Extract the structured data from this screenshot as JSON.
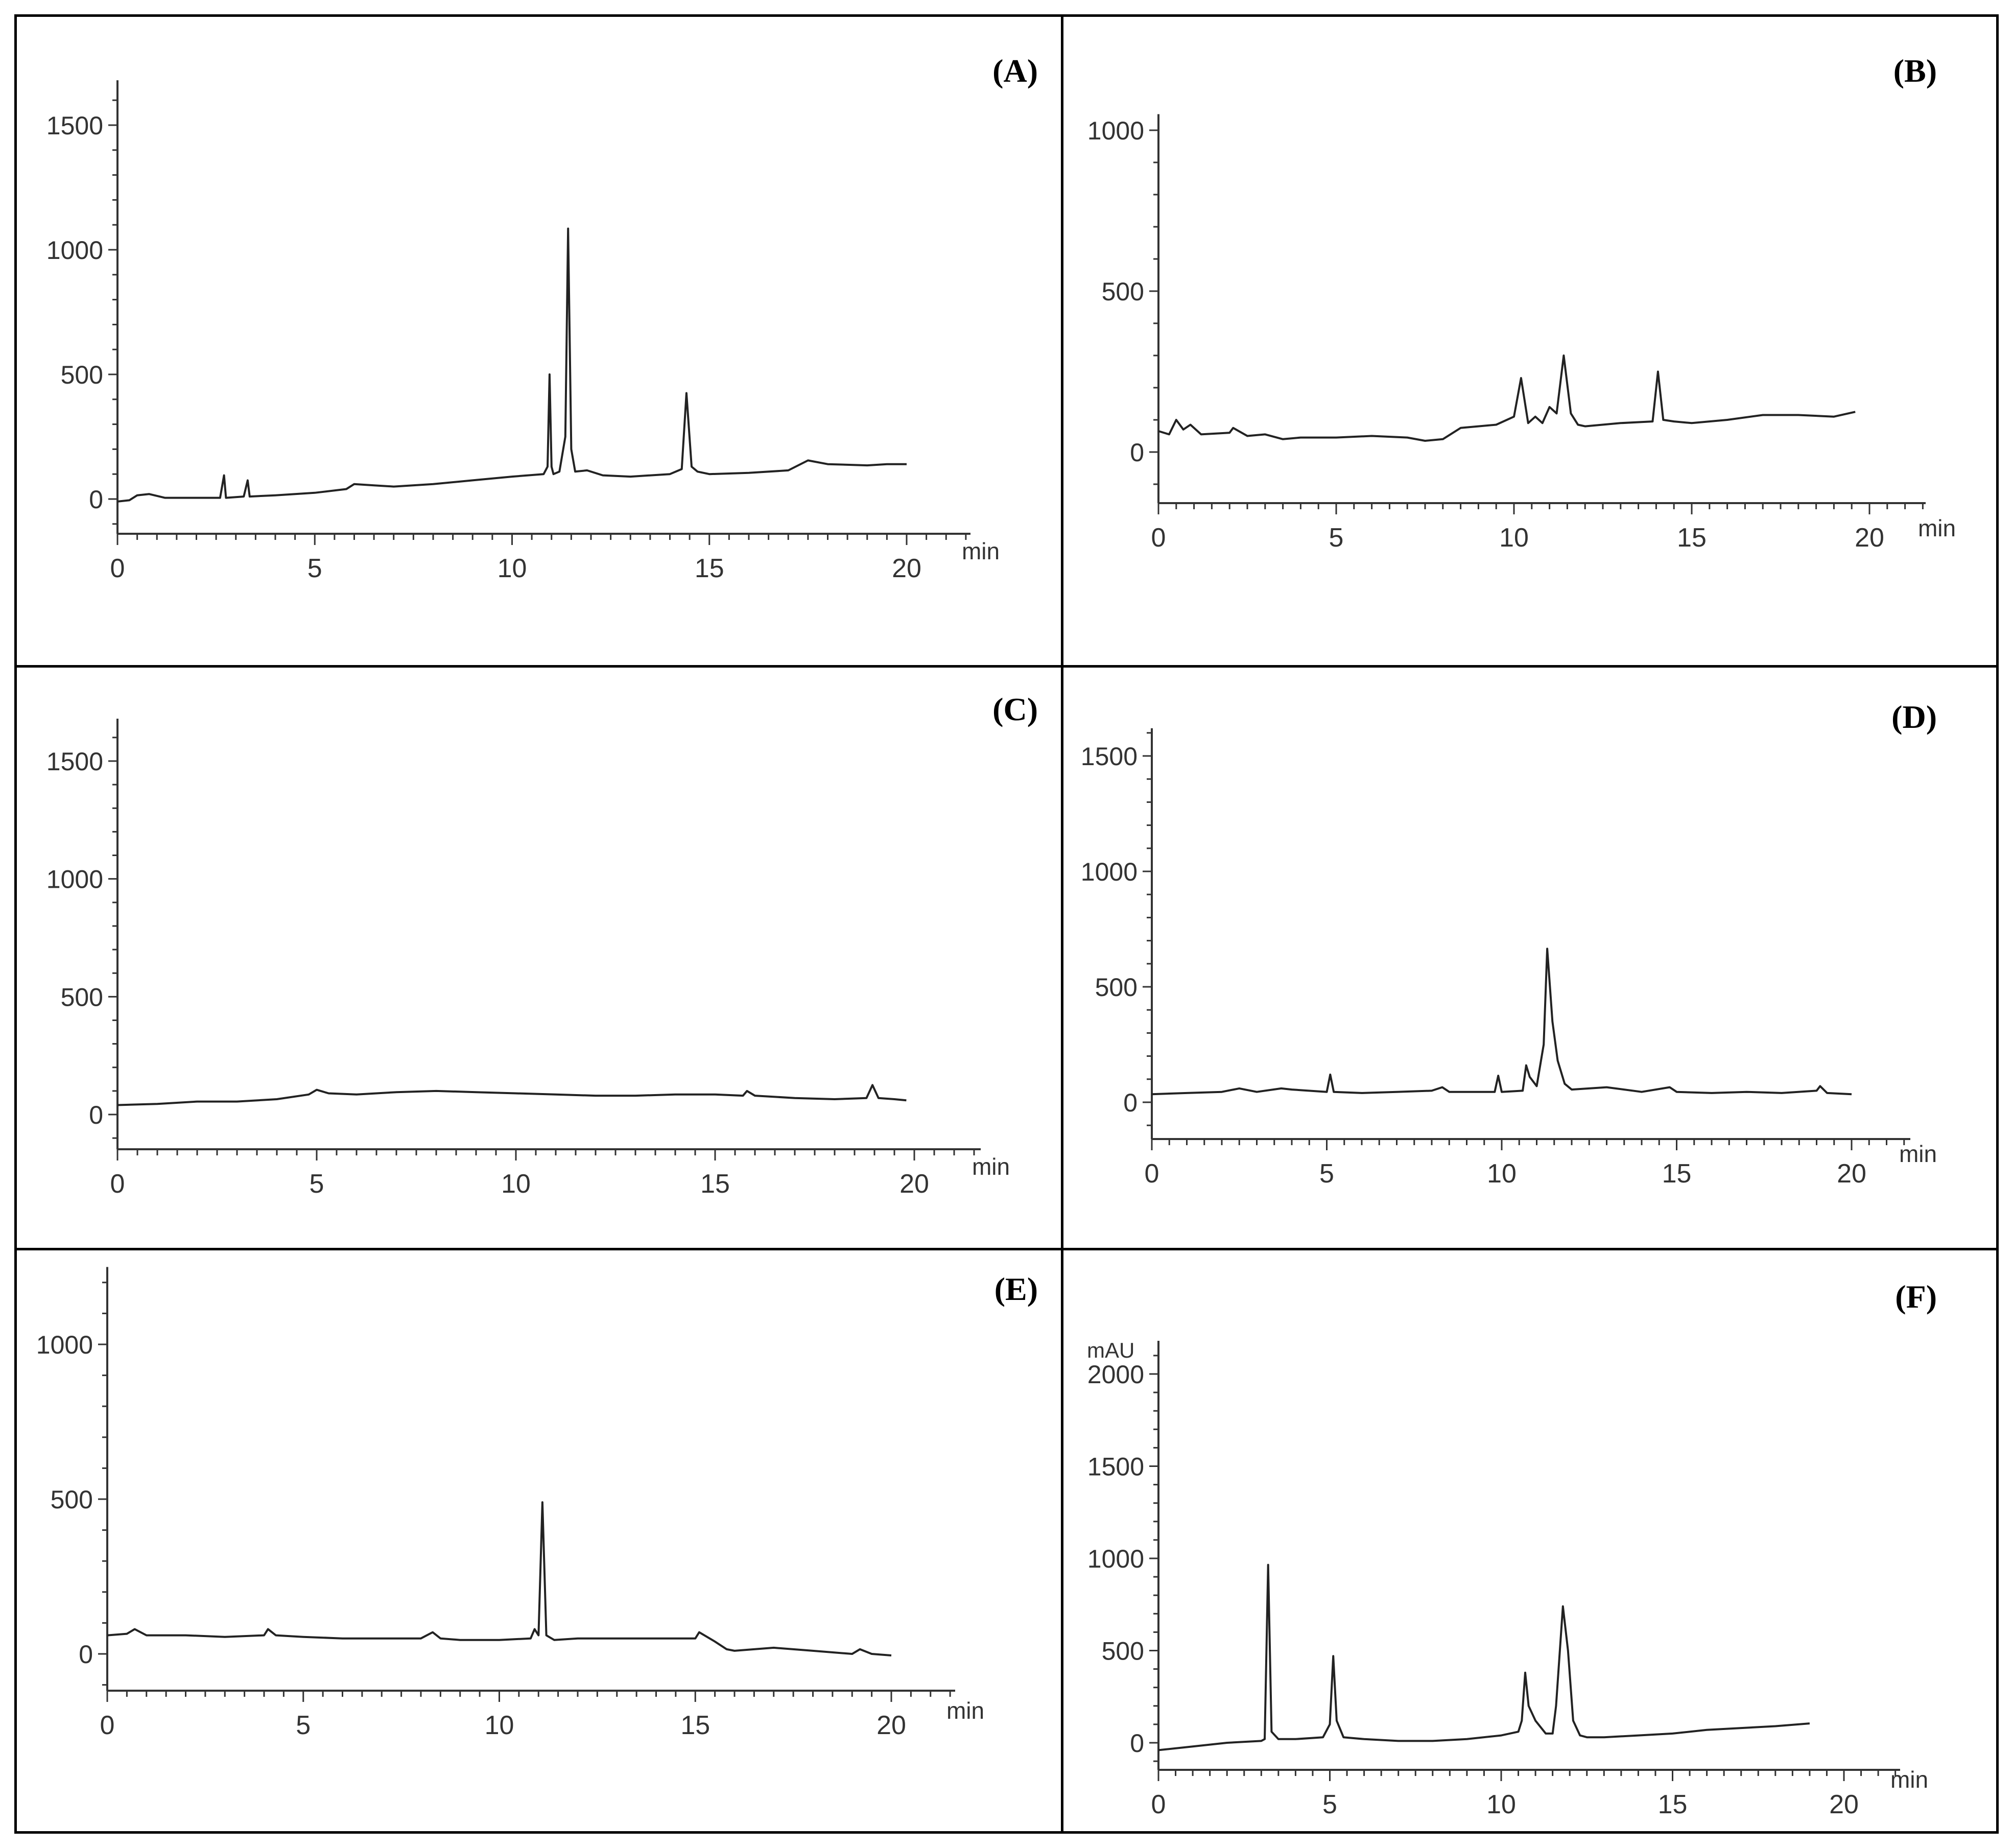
{
  "figure": {
    "panels": [
      {
        "id": "A",
        "label": "(A)"
      },
      {
        "id": "B",
        "label": "(B)"
      },
      {
        "id": "C",
        "label": "(C)"
      },
      {
        "id": "D",
        "label": "(D)"
      },
      {
        "id": "E",
        "label": "(E)"
      },
      {
        "id": "F",
        "label": "(F)"
      }
    ]
  },
  "chart_data": [
    {
      "panel": "A",
      "type": "line",
      "title": "",
      "xlabel": "min",
      "ylabel": "",
      "xlim": [
        0,
        21.5
      ],
      "ylim": [
        -180,
        1680
      ],
      "xticks": [
        "0",
        "5",
        "10",
        "15",
        "20"
      ],
      "yticks": [
        {
          "v": 0,
          "t": "0"
        },
        {
          "v": 500,
          "t": "500"
        },
        {
          "v": 1000,
          "t": "1000"
        },
        {
          "v": 1500,
          "t": "1500"
        }
      ],
      "grid": false,
      "series": [
        {
          "points": [
            [
              0,
              -10
            ],
            [
              0.3,
              -5
            ],
            [
              0.5,
              15
            ],
            [
              0.8,
              20
            ],
            [
              1.2,
              5
            ],
            [
              2,
              5
            ],
            [
              2.6,
              5
            ],
            [
              2.7,
              95
            ],
            [
              2.75,
              5
            ],
            [
              3.2,
              10
            ],
            [
              3.3,
              75
            ],
            [
              3.35,
              10
            ],
            [
              4,
              15
            ],
            [
              5,
              25
            ],
            [
              5.8,
              40
            ],
            [
              6,
              60
            ],
            [
              6.5,
              55
            ],
            [
              7,
              50
            ],
            [
              8,
              60
            ],
            [
              9,
              75
            ],
            [
              10,
              90
            ],
            [
              10.8,
              100
            ],
            [
              10.9,
              130
            ],
            [
              10.95,
              500
            ],
            [
              11.0,
              130
            ],
            [
              11.05,
              100
            ],
            [
              11.2,
              110
            ],
            [
              11.35,
              250
            ],
            [
              11.42,
              1085
            ],
            [
              11.5,
              200
            ],
            [
              11.6,
              110
            ],
            [
              11.9,
              115
            ],
            [
              12.3,
              95
            ],
            [
              13,
              90
            ],
            [
              14,
              100
            ],
            [
              14.3,
              120
            ],
            [
              14.42,
              425
            ],
            [
              14.55,
              130
            ],
            [
              14.7,
              110
            ],
            [
              15,
              100
            ],
            [
              16,
              105
            ],
            [
              17,
              115
            ],
            [
              17.5,
              155
            ],
            [
              18,
              140
            ],
            [
              19,
              135
            ],
            [
              19.5,
              140
            ],
            [
              20,
              140
            ]
          ]
        }
      ]
    },
    {
      "panel": "B",
      "type": "line",
      "title": "",
      "xlabel": "min",
      "ylabel": "",
      "xlim": [
        0,
        21.5
      ],
      "ylim": [
        -170,
        1050
      ],
      "xticks": [
        "0",
        "5",
        "10",
        "15",
        "20"
      ],
      "yticks": [
        {
          "v": 0,
          "t": "0"
        },
        {
          "v": 500,
          "t": "500"
        },
        {
          "v": 1000,
          "t": "1000"
        }
      ],
      "grid": false,
      "series": [
        {
          "points": [
            [
              0,
              65
            ],
            [
              0.3,
              55
            ],
            [
              0.5,
              100
            ],
            [
              0.7,
              70
            ],
            [
              0.9,
              85
            ],
            [
              1.2,
              55
            ],
            [
              2,
              60
            ],
            [
              2.1,
              75
            ],
            [
              2.5,
              50
            ],
            [
              3,
              55
            ],
            [
              3.5,
              40
            ],
            [
              4,
              45
            ],
            [
              5,
              45
            ],
            [
              6,
              50
            ],
            [
              7,
              45
            ],
            [
              7.5,
              35
            ],
            [
              8,
              40
            ],
            [
              8.5,
              75
            ],
            [
              9,
              80
            ],
            [
              9.5,
              85
            ],
            [
              10,
              110
            ],
            [
              10.2,
              230
            ],
            [
              10.4,
              90
            ],
            [
              10.6,
              110
            ],
            [
              10.8,
              90
            ],
            [
              11.0,
              140
            ],
            [
              11.2,
              120
            ],
            [
              11.4,
              300
            ],
            [
              11.6,
              120
            ],
            [
              11.8,
              85
            ],
            [
              12,
              80
            ],
            [
              13,
              90
            ],
            [
              13.9,
              95
            ],
            [
              14.05,
              250
            ],
            [
              14.2,
              100
            ],
            [
              14.5,
              95
            ],
            [
              15,
              90
            ],
            [
              16,
              100
            ],
            [
              17,
              115
            ],
            [
              18,
              115
            ],
            [
              19,
              110
            ],
            [
              19.6,
              125
            ]
          ]
        }
      ]
    },
    {
      "panel": "C",
      "type": "line",
      "title": "",
      "xlabel": "min",
      "ylabel": "",
      "xlim": [
        0,
        21.8
      ],
      "ylim": [
        -180,
        1680
      ],
      "xticks": [
        "0",
        "5",
        "10",
        "15",
        "20"
      ],
      "yticks": [
        {
          "v": 0,
          "t": "0"
        },
        {
          "v": 500,
          "t": "500"
        },
        {
          "v": 1000,
          "t": "1000"
        },
        {
          "v": 1500,
          "t": "1500"
        }
      ],
      "grid": false,
      "series": [
        {
          "points": [
            [
              0,
              40
            ],
            [
              1,
              45
            ],
            [
              2,
              55
            ],
            [
              3,
              55
            ],
            [
              4,
              65
            ],
            [
              4.8,
              85
            ],
            [
              5.0,
              105
            ],
            [
              5.3,
              90
            ],
            [
              6,
              85
            ],
            [
              7,
              95
            ],
            [
              8,
              100
            ],
            [
              9,
              95
            ],
            [
              10,
              90
            ],
            [
              11,
              85
            ],
            [
              12,
              80
            ],
            [
              13,
              80
            ],
            [
              14,
              85
            ],
            [
              15,
              85
            ],
            [
              15.7,
              80
            ],
            [
              15.8,
              100
            ],
            [
              16.0,
              80
            ],
            [
              17,
              70
            ],
            [
              18,
              65
            ],
            [
              18.8,
              70
            ],
            [
              18.95,
              125
            ],
            [
              19.1,
              70
            ],
            [
              19.5,
              65
            ],
            [
              19.8,
              60
            ]
          ]
        }
      ]
    },
    {
      "panel": "D",
      "type": "line",
      "title": "",
      "xlabel": "min",
      "ylabel": "",
      "xlim": [
        0,
        21.5
      ],
      "ylim": [
        -180,
        1620
      ],
      "xticks": [
        "0",
        "5",
        "10",
        "15",
        "20"
      ],
      "yticks": [
        {
          "v": 0,
          "t": "0"
        },
        {
          "v": 500,
          "t": "500"
        },
        {
          "v": 1000,
          "t": "1000"
        },
        {
          "v": 1500,
          "t": "1500"
        }
      ],
      "grid": false,
      "series": [
        {
          "points": [
            [
              0,
              35
            ],
            [
              1,
              40
            ],
            [
              2,
              45
            ],
            [
              2.5,
              60
            ],
            [
              3,
              45
            ],
            [
              3.7,
              60
            ],
            [
              4,
              55
            ],
            [
              5,
              45
            ],
            [
              5.1,
              120
            ],
            [
              5.2,
              45
            ],
            [
              6,
              40
            ],
            [
              7,
              45
            ],
            [
              8,
              50
            ],
            [
              8.3,
              65
            ],
            [
              8.5,
              45
            ],
            [
              9,
              45
            ],
            [
              9.8,
              45
            ],
            [
              9.9,
              115
            ],
            [
              10,
              45
            ],
            [
              10.6,
              50
            ],
            [
              10.7,
              160
            ],
            [
              10.8,
              110
            ],
            [
              11,
              70
            ],
            [
              11.2,
              250
            ],
            [
              11.3,
              665
            ],
            [
              11.45,
              350
            ],
            [
              11.6,
              180
            ],
            [
              11.8,
              80
            ],
            [
              12,
              55
            ],
            [
              13,
              65
            ],
            [
              14,
              45
            ],
            [
              14.8,
              65
            ],
            [
              15,
              45
            ],
            [
              16,
              40
            ],
            [
              17,
              45
            ],
            [
              18,
              40
            ],
            [
              19,
              50
            ],
            [
              19.1,
              70
            ],
            [
              19.3,
              40
            ],
            [
              20,
              35
            ]
          ]
        }
      ]
    },
    {
      "panel": "E",
      "type": "line",
      "title": "",
      "xlabel": "min",
      "ylabel": "",
      "xlim": [
        0,
        21.6
      ],
      "ylim": [
        -180,
        1250
      ],
      "xticks": [
        "0",
        "5",
        "10",
        "15",
        "20"
      ],
      "yticks": [
        {
          "v": 0,
          "t": "0"
        },
        {
          "v": 500,
          "t": "500"
        },
        {
          "v": 1000,
          "t": "1000"
        }
      ],
      "grid": false,
      "series": [
        {
          "points": [
            [
              0,
              60
            ],
            [
              0.5,
              65
            ],
            [
              0.7,
              80
            ],
            [
              1,
              60
            ],
            [
              2,
              60
            ],
            [
              3,
              55
            ],
            [
              4,
              60
            ],
            [
              4.1,
              80
            ],
            [
              4.3,
              60
            ],
            [
              5,
              55
            ],
            [
              6,
              50
            ],
            [
              7,
              50
            ],
            [
              8,
              50
            ],
            [
              8.3,
              70
            ],
            [
              8.5,
              50
            ],
            [
              9,
              45
            ],
            [
              10,
              45
            ],
            [
              10.8,
              50
            ],
            [
              10.9,
              80
            ],
            [
              11.0,
              60
            ],
            [
              11.1,
              490
            ],
            [
              11.2,
              60
            ],
            [
              11.4,
              45
            ],
            [
              12,
              50
            ],
            [
              13,
              50
            ],
            [
              14,
              50
            ],
            [
              15,
              50
            ],
            [
              15.1,
              70
            ],
            [
              15.5,
              40
            ],
            [
              15.8,
              15
            ],
            [
              16,
              10
            ],
            [
              17,
              20
            ],
            [
              18,
              10
            ],
            [
              19,
              0
            ],
            [
              19.2,
              15
            ],
            [
              19.5,
              0
            ],
            [
              20,
              -5
            ]
          ]
        }
      ]
    },
    {
      "panel": "F",
      "type": "line",
      "title": "",
      "xlabel": "min",
      "ylabel": "mAU",
      "xlim": [
        0,
        21.6
      ],
      "ylim": [
        -180,
        2180
      ],
      "xticks": [
        "0",
        "5",
        "10",
        "15",
        "20"
      ],
      "yticks": [
        {
          "v": 0,
          "t": "0"
        },
        {
          "v": 500,
          "t": "500"
        },
        {
          "v": 1000,
          "t": "1000"
        },
        {
          "v": 1500,
          "t": "1500"
        },
        {
          "v": 2000,
          "t": "2000"
        }
      ],
      "grid": false,
      "series": [
        {
          "points": [
            [
              0,
              -40
            ],
            [
              1,
              -20
            ],
            [
              2,
              0
            ],
            [
              3,
              10
            ],
            [
              3.1,
              20
            ],
            [
              3.2,
              965
            ],
            [
              3.3,
              60
            ],
            [
              3.5,
              20
            ],
            [
              4,
              20
            ],
            [
              4.8,
              30
            ],
            [
              5.0,
              100
            ],
            [
              5.1,
              470
            ],
            [
              5.2,
              120
            ],
            [
              5.4,
              30
            ],
            [
              6,
              20
            ],
            [
              7,
              10
            ],
            [
              8,
              10
            ],
            [
              9,
              20
            ],
            [
              10,
              40
            ],
            [
              10.5,
              60
            ],
            [
              10.6,
              120
            ],
            [
              10.7,
              380
            ],
            [
              10.8,
              200
            ],
            [
              11,
              120
            ],
            [
              11.3,
              50
            ],
            [
              11.5,
              50
            ],
            [
              11.6,
              200
            ],
            [
              11.8,
              740
            ],
            [
              11.95,
              500
            ],
            [
              12.1,
              120
            ],
            [
              12.3,
              40
            ],
            [
              12.5,
              30
            ],
            [
              13,
              30
            ],
            [
              14,
              40
            ],
            [
              15,
              50
            ],
            [
              16,
              70
            ],
            [
              17,
              80
            ],
            [
              18,
              90
            ],
            [
              19,
              105
            ]
          ]
        }
      ]
    }
  ]
}
